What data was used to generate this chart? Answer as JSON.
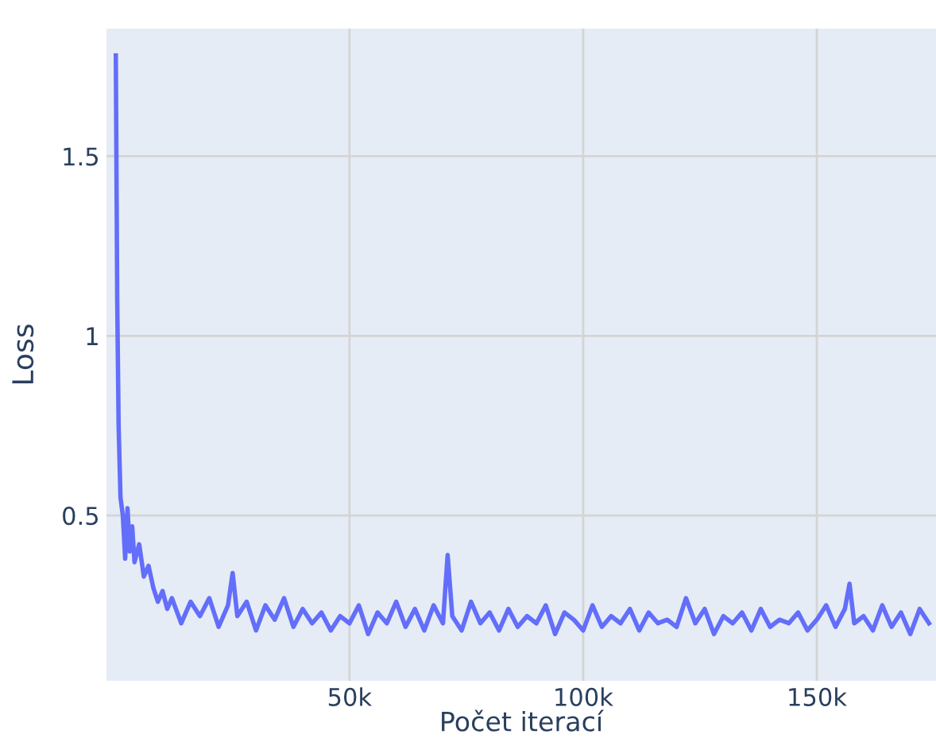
{
  "chart_data": {
    "type": "line",
    "xlabel": "Počet iterací",
    "ylabel": "Loss",
    "xlim": [
      -2000,
      175500
    ],
    "ylim": [
      0.04,
      1.855
    ],
    "xticks": [
      {
        "value": 50000,
        "label": "50k"
      },
      {
        "value": 100000,
        "label": "100k"
      },
      {
        "value": 150000,
        "label": "150k"
      }
    ],
    "yticks": [
      0.5,
      1,
      1.5
    ],
    "grid": true,
    "marker": "none",
    "line_style": "solid",
    "series": [
      {
        "color": "#636efa",
        "x": [
          0,
          300,
          600,
          1000,
          1500,
          2000,
          2500,
          3000,
          3500,
          4000,
          5000,
          6000,
          7000,
          8000,
          9000,
          10000,
          11000,
          12000,
          14000,
          16000,
          18000,
          20000,
          22000,
          24000,
          25000,
          26000,
          28000,
          30000,
          32000,
          34000,
          36000,
          38000,
          40000,
          42000,
          44000,
          46000,
          48000,
          50000,
          52000,
          54000,
          56000,
          58000,
          60000,
          62000,
          64000,
          66000,
          68000,
          70000,
          71000,
          72000,
          74000,
          76000,
          78000,
          80000,
          82000,
          84000,
          86000,
          88000,
          90000,
          92000,
          94000,
          96000,
          98000,
          100000,
          102000,
          104000,
          106000,
          108000,
          110000,
          112000,
          114000,
          116000,
          118000,
          120000,
          122000,
          124000,
          126000,
          128000,
          130000,
          132000,
          134000,
          136000,
          138000,
          140000,
          142000,
          144000,
          146000,
          148000,
          150000,
          152000,
          154000,
          156000,
          157000,
          158000,
          160000,
          162000,
          164000,
          166000,
          168000,
          170000,
          172000,
          174000
        ],
        "values": [
          1.78,
          1.1,
          0.75,
          0.55,
          0.5,
          0.38,
          0.52,
          0.4,
          0.47,
          0.37,
          0.42,
          0.33,
          0.36,
          0.3,
          0.26,
          0.29,
          0.24,
          0.27,
          0.2,
          0.26,
          0.22,
          0.27,
          0.19,
          0.25,
          0.34,
          0.22,
          0.26,
          0.18,
          0.25,
          0.21,
          0.27,
          0.19,
          0.24,
          0.2,
          0.23,
          0.18,
          0.22,
          0.2,
          0.25,
          0.17,
          0.23,
          0.2,
          0.26,
          0.19,
          0.24,
          0.18,
          0.25,
          0.2,
          0.39,
          0.22,
          0.18,
          0.26,
          0.2,
          0.23,
          0.18,
          0.24,
          0.19,
          0.22,
          0.2,
          0.25,
          0.17,
          0.23,
          0.21,
          0.18,
          0.25,
          0.19,
          0.22,
          0.2,
          0.24,
          0.18,
          0.23,
          0.2,
          0.21,
          0.19,
          0.27,
          0.2,
          0.24,
          0.17,
          0.22,
          0.2,
          0.23,
          0.18,
          0.24,
          0.19,
          0.21,
          0.2,
          0.23,
          0.18,
          0.21,
          0.25,
          0.19,
          0.24,
          0.31,
          0.2,
          0.22,
          0.18,
          0.25,
          0.19,
          0.23,
          0.17,
          0.24,
          0.2
        ]
      }
    ]
  }
}
